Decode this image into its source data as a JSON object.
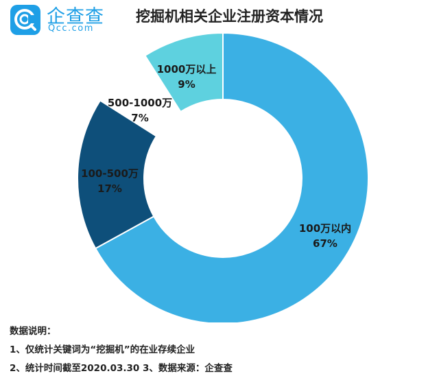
{
  "header": {
    "logo_cn": "企查查",
    "logo_en": "Qcc.com",
    "title": "挖掘机相关企业注册资本情况"
  },
  "chart_data": {
    "type": "pie",
    "title": "挖掘机相关企业注册资本情况",
    "donut": true,
    "slices": [
      {
        "label": "100万以内",
        "pct_text": "67%",
        "value": 67,
        "color": "#3bb0e4"
      },
      {
        "label": "100-500万",
        "pct_text": "17%",
        "value": 17,
        "color": "#0e4f7a"
      },
      {
        "label": "500-1000万",
        "pct_text": "7%",
        "value": 7,
        "color": "#ffffff"
      },
      {
        "label": "1000万以上",
        "pct_text": "9%",
        "value": 9,
        "color": "#5ed1df"
      }
    ]
  },
  "notes": {
    "heading": "数据说明：",
    "line1": "1、仅统计关键词为“挖掘机”的在业存续企业",
    "line2": "2、统计时间截至2020.03.30    3、数据来源：企查查"
  }
}
